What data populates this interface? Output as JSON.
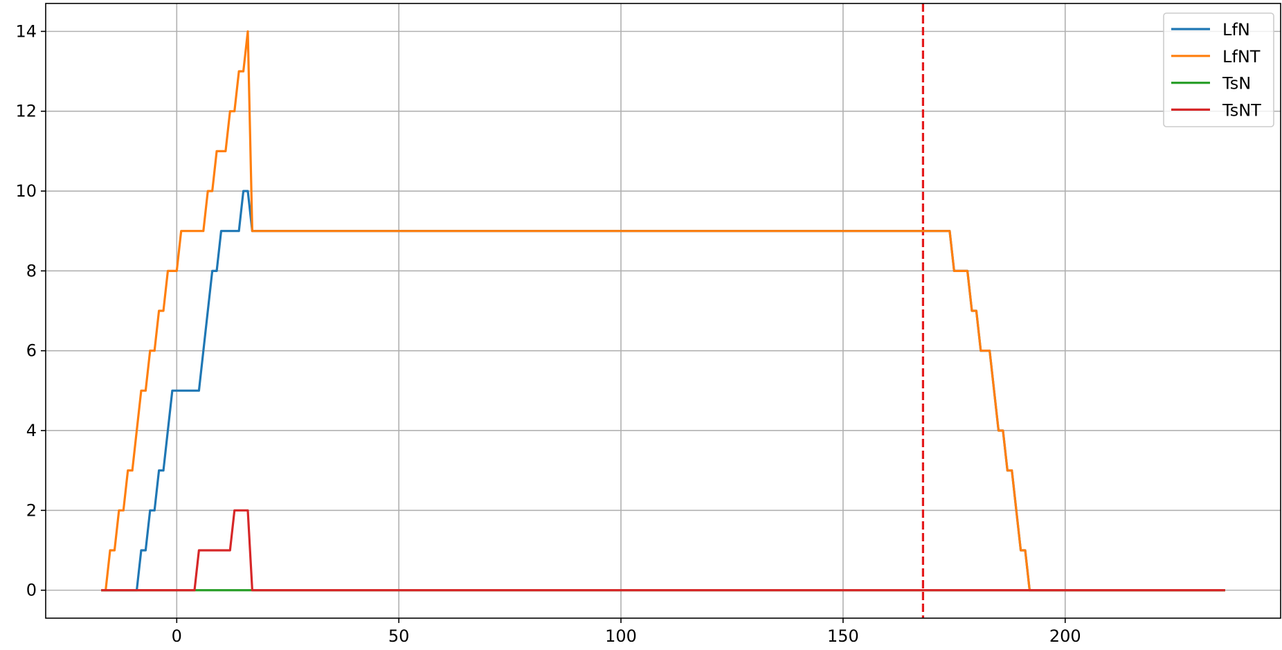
{
  "chart_data": {
    "type": "line",
    "title": "",
    "xlabel": "",
    "ylabel": "",
    "xlim": [
      -29.5,
      248.5
    ],
    "ylim": [
      -0.7,
      14.7
    ],
    "xticks": [
      0,
      50,
      100,
      150,
      200
    ],
    "yticks": [
      0,
      2,
      4,
      6,
      8,
      10,
      12,
      14
    ],
    "grid": true,
    "legend_position": "top-right",
    "vline": {
      "x": 168,
      "color": "#e41a1c",
      "style": "dashed"
    },
    "series": [
      {
        "name": "LfN",
        "color": "#1f77b4",
        "points": [
          [
            -17,
            0
          ],
          [
            -9,
            0
          ],
          [
            -8,
            1
          ],
          [
            -7,
            1
          ],
          [
            -6,
            2
          ],
          [
            -5,
            2
          ],
          [
            -4,
            3
          ],
          [
            -3,
            3
          ],
          [
            -1,
            5
          ],
          [
            5,
            5
          ],
          [
            8,
            8
          ],
          [
            9,
            8
          ],
          [
            10,
            9
          ],
          [
            14,
            9
          ],
          [
            15,
            10
          ],
          [
            16,
            10
          ],
          [
            17,
            9
          ],
          [
            174,
            9
          ],
          [
            175,
            8
          ],
          [
            178,
            8
          ],
          [
            179,
            7
          ],
          [
            180,
            7
          ],
          [
            181,
            6
          ],
          [
            183,
            6
          ],
          [
            185,
            4
          ],
          [
            186,
            4
          ],
          [
            187,
            3
          ],
          [
            188,
            3
          ],
          [
            190,
            1
          ],
          [
            191,
            1
          ],
          [
            192,
            0
          ],
          [
            236,
            0
          ]
        ]
      },
      {
        "name": "LfNT",
        "color": "#ff7f0e",
        "points": [
          [
            -17,
            0
          ],
          [
            -16,
            0
          ],
          [
            -15,
            1
          ],
          [
            -14,
            1
          ],
          [
            -13,
            2
          ],
          [
            -12,
            2
          ],
          [
            -11,
            3
          ],
          [
            -10,
            3
          ],
          [
            -8,
            5
          ],
          [
            -7,
            5
          ],
          [
            -6,
            6
          ],
          [
            -5,
            6
          ],
          [
            -4,
            7
          ],
          [
            -3,
            7
          ],
          [
            -2,
            8
          ],
          [
            0,
            8
          ],
          [
            1,
            9
          ],
          [
            6,
            9
          ],
          [
            7,
            10
          ],
          [
            8,
            10
          ],
          [
            9,
            11
          ],
          [
            11,
            11
          ],
          [
            12,
            12
          ],
          [
            13,
            12
          ],
          [
            14,
            13
          ],
          [
            15,
            13
          ],
          [
            16,
            14
          ],
          [
            17,
            9
          ],
          [
            174,
            9
          ],
          [
            175,
            8
          ],
          [
            178,
            8
          ],
          [
            179,
            7
          ],
          [
            180,
            7
          ],
          [
            181,
            6
          ],
          [
            183,
            6
          ],
          [
            185,
            4
          ],
          [
            186,
            4
          ],
          [
            187,
            3
          ],
          [
            188,
            3
          ],
          [
            190,
            1
          ],
          [
            191,
            1
          ],
          [
            192,
            0
          ],
          [
            236,
            0
          ]
        ]
      },
      {
        "name": "TsN",
        "color": "#2ca02c",
        "points": [
          [
            -17,
            0
          ],
          [
            236,
            0
          ]
        ]
      },
      {
        "name": "TsNT",
        "color": "#d62728",
        "points": [
          [
            -17,
            0
          ],
          [
            4,
            0
          ],
          [
            5,
            1
          ],
          [
            12,
            1
          ],
          [
            13,
            2
          ],
          [
            16,
            2
          ],
          [
            17,
            0
          ],
          [
            236,
            0
          ]
        ]
      }
    ]
  }
}
